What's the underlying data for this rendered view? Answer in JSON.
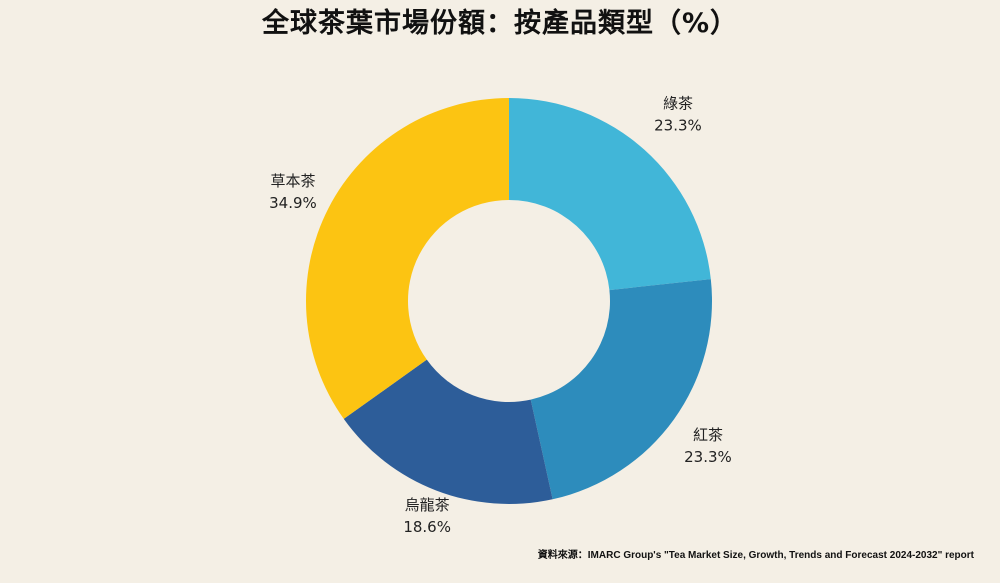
{
  "chart_data": {
    "type": "pie",
    "title": "全球茶葉市場份額：按產品類型（%）",
    "donut": true,
    "categories": [
      "綠茶",
      "紅茶",
      "烏龍茶",
      "草本茶"
    ],
    "values": [
      23.3,
      23.3,
      18.6,
      34.9
    ],
    "value_labels": [
      "23.3%",
      "23.3%",
      "18.6%",
      "34.9%"
    ],
    "colors": [
      "#41b6d8",
      "#2d8cbc",
      "#2d5d99",
      "#fcc412"
    ],
    "start": "12 o'clock",
    "direction": "clockwise"
  },
  "source": "資料來源：IMARC Group's \"Tea Market Size, Growth, Trends and Forecast 2024-2032\" report"
}
